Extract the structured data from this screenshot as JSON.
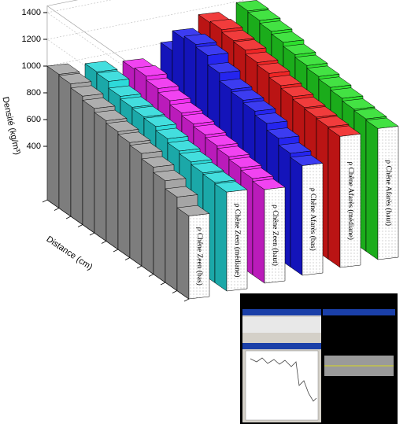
{
  "chart_data": {
    "type": "ribbon3d",
    "ylabel": "Densité (kg/m³)",
    "xlabel": "Distance (cm)",
    "ylim": [
      0,
      1450
    ],
    "yticks": [
      400,
      600,
      800,
      1000,
      1200,
      1400
    ],
    "grid": true,
    "series": [
      {
        "name": "ρ Chêne Zeen (bas)",
        "color": "#a0a0a0",
        "values": [
          1000,
          990,
          960,
          930,
          900,
          880,
          860,
          840,
          800,
          760,
          700,
          620
        ]
      },
      {
        "name": "ρ Chêne Zeen (médiane)",
        "color": "#22d8d8",
        "values": [
          960,
          950,
          900,
          880,
          870,
          860,
          830,
          800,
          780,
          760,
          750,
          740
        ]
      },
      {
        "name": "ρ Chêne Zeen (haut)",
        "color": "#ee22ee",
        "values": [
          920,
          930,
          900,
          870,
          840,
          820,
          800,
          780,
          760,
          740,
          720,
          700
        ]
      },
      {
        "name": "ρ Chêne Afarès (bas)",
        "color": "#1a1aee",
        "values": [
          1000,
          1150,
          1170,
          1150,
          1080,
          1020,
          1000,
          980,
          950,
          900,
          850,
          820
        ]
      },
      {
        "name": "ρ Chêne Afarès (médiane)",
        "color": "#ee1a1a",
        "values": [
          1150,
          1160,
          1140,
          1130,
          1100,
          1080,
          1050,
          1030,
          1010,
          1000,
          990,
          980
        ]
      },
      {
        "name": "ρ Chêne Afarès (haut)",
        "color": "#22dd22",
        "values": [
          1180,
          1170,
          1150,
          1130,
          1100,
          1080,
          1060,
          1040,
          1020,
          1000,
          990,
          980
        ]
      }
    ]
  }
}
